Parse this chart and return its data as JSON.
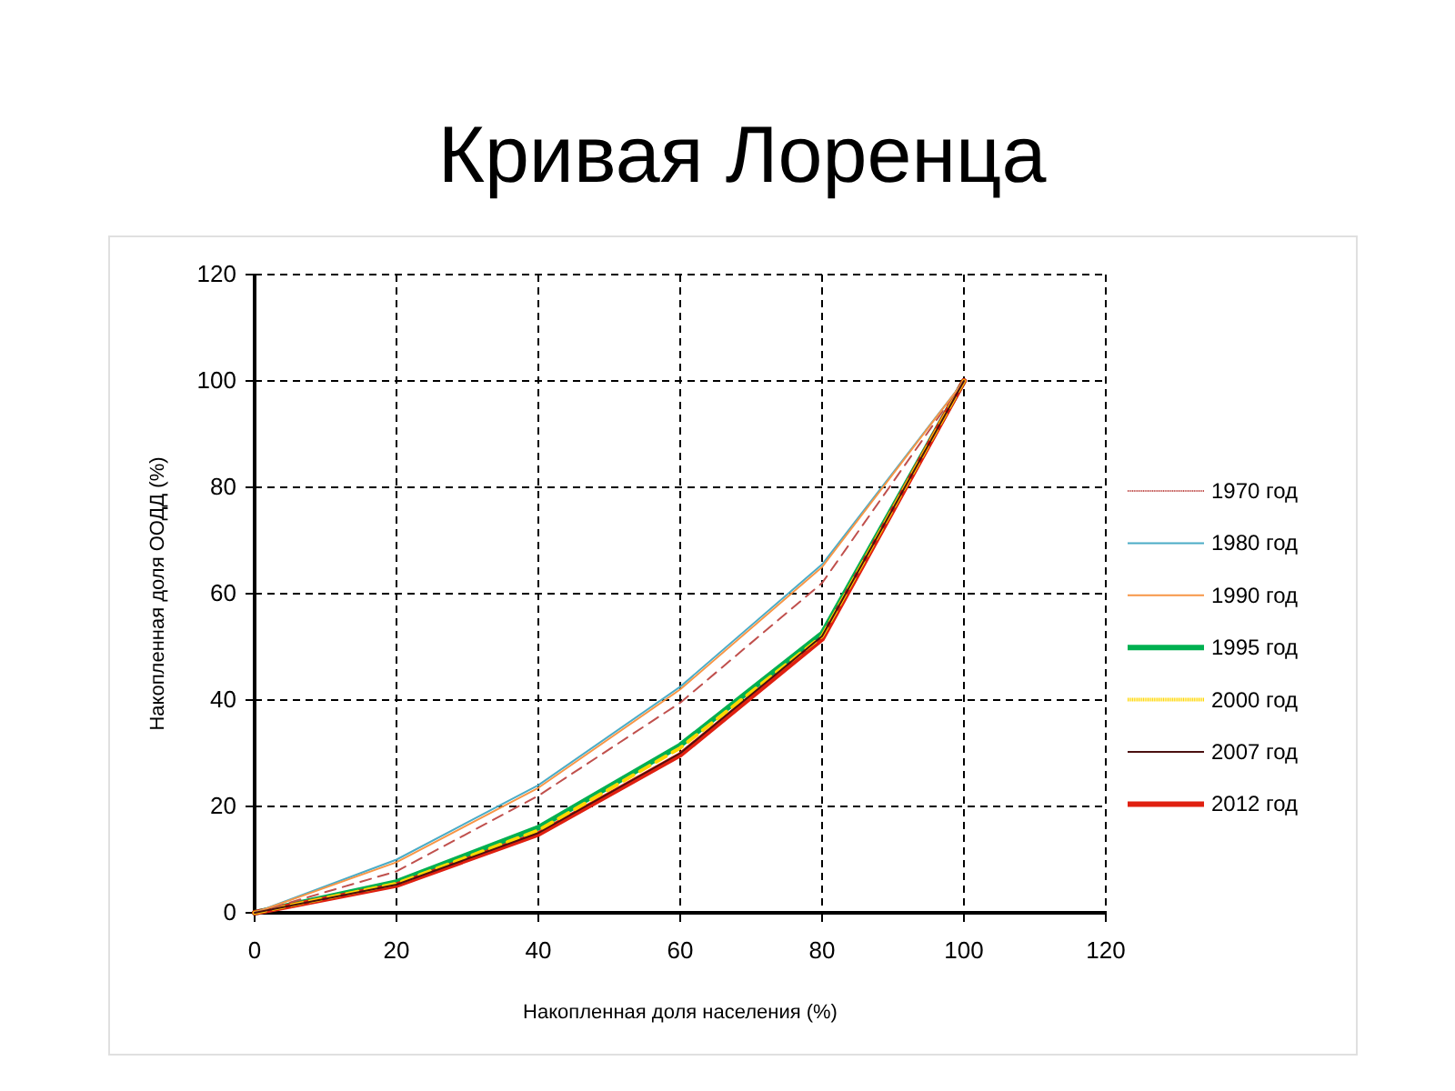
{
  "chart_data": {
    "type": "line",
    "title": "Кривая Лоренца",
    "xlabel": "Накопленная доля населения (%)",
    "ylabel": "Накопленная доля  ООДД (%)",
    "x": [
      0,
      20,
      40,
      60,
      80,
      100
    ],
    "series": [
      {
        "name": "1970 год",
        "color": "#c0504d",
        "line_style": "dashed",
        "values": [
          0,
          7.8,
          22,
          39.5,
          62,
          100
        ]
      },
      {
        "name": "1980 год",
        "color": "#4bacc6",
        "line_style": "solid",
        "values": [
          0,
          10,
          24,
          42.5,
          65.5,
          100
        ]
      },
      {
        "name": "1990 год",
        "color": "#f79646",
        "line_style": "solid",
        "values": [
          0,
          9.5,
          23.5,
          42,
          65,
          100
        ]
      },
      {
        "name": "1995 год",
        "color": "#00b050",
        "line_style": "solid",
        "values": [
          0,
          5.8,
          16,
          31.5,
          52.5,
          100
        ]
      },
      {
        "name": "2000 год",
        "color": "#ffd700",
        "line_style": "dashed",
        "values": [
          0,
          5.5,
          15.5,
          31,
          52,
          100
        ]
      },
      {
        "name": "2007 год",
        "color": "#4a1010",
        "line_style": "solid",
        "values": [
          0,
          5.3,
          15,
          30,
          52,
          100
        ]
      },
      {
        "name": "2012 год",
        "color": "#e02010",
        "line_style": "solid",
        "values": [
          0,
          5.2,
          14.8,
          29.7,
          51.5,
          100
        ]
      }
    ],
    "xlim": [
      0,
      120
    ],
    "xticks": [
      0,
      20,
      40,
      60,
      80,
      100,
      120
    ],
    "ylim": [
      0,
      120
    ],
    "yticks": [
      0,
      20,
      40,
      60,
      80,
      100,
      120
    ],
    "grid": true,
    "legend": "right",
    "marker": "none"
  }
}
